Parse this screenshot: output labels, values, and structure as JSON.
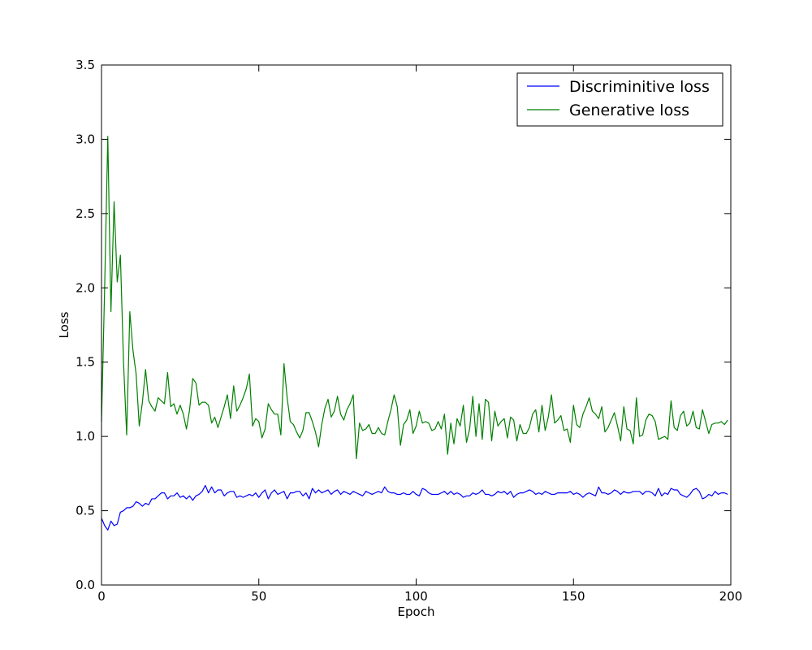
{
  "chart_data": {
    "type": "line",
    "title": "",
    "xlabel": "Epoch",
    "ylabel": "Loss",
    "xlim": [
      0,
      200
    ],
    "ylim": [
      0,
      3.5
    ],
    "xticks": [
      0,
      50,
      100,
      150,
      200
    ],
    "xtick_labels": [
      "0",
      "50",
      "100",
      "150",
      "200"
    ],
    "yticks": [
      0,
      0.5,
      1,
      1.5,
      2,
      2.5,
      3,
      3.5
    ],
    "ytick_labels": [
      "0.0",
      "0.5",
      "1.0",
      "1.5",
      "2.0",
      "2.5",
      "3.0",
      "3.5"
    ],
    "grid": false,
    "legend_position": "top-right",
    "series": [
      {
        "name": "Discriminitive loss",
        "color": "#0000ff",
        "x": [
          0,
          1,
          2,
          3,
          4,
          5,
          6,
          7,
          8,
          9,
          10,
          11,
          12,
          13,
          14,
          15,
          16,
          17,
          18,
          19,
          20,
          21,
          22,
          23,
          24,
          25,
          26,
          27,
          28,
          29,
          30,
          31,
          32,
          33,
          34,
          35,
          36,
          37,
          38,
          39,
          40,
          41,
          42,
          43,
          44,
          45,
          46,
          47,
          48,
          49,
          50,
          51,
          52,
          53,
          54,
          55,
          56,
          57,
          58,
          59,
          60,
          61,
          62,
          63,
          64,
          65,
          66,
          67,
          68,
          69,
          70,
          71,
          72,
          73,
          74,
          75,
          76,
          77,
          78,
          79,
          80,
          81,
          82,
          83,
          84,
          85,
          86,
          87,
          88,
          89,
          90,
          91,
          92,
          93,
          94,
          95,
          96,
          97,
          98,
          99,
          100,
          101,
          102,
          103,
          104,
          105,
          106,
          107,
          108,
          109,
          110,
          111,
          112,
          113,
          114,
          115,
          116,
          117,
          118,
          119,
          120,
          121,
          122,
          123,
          124,
          125,
          126,
          127,
          128,
          129,
          130,
          131,
          132,
          133,
          134,
          135,
          136,
          137,
          138,
          139,
          140,
          141,
          142,
          143,
          144,
          145,
          146,
          147,
          148,
          149,
          150,
          151,
          152,
          153,
          154,
          155,
          156,
          157,
          158,
          159,
          160,
          161,
          162,
          163,
          164,
          165,
          166,
          167,
          168,
          169,
          170,
          171,
          172,
          173,
          174,
          175,
          176,
          177,
          178,
          179,
          180,
          181,
          182,
          183,
          184,
          185,
          186,
          187,
          188,
          189,
          190,
          191,
          192,
          193,
          194,
          195,
          196,
          197,
          198,
          199
        ],
        "y": [
          0.45,
          0.4,
          0.37,
          0.43,
          0.4,
          0.41,
          0.49,
          0.5,
          0.52,
          0.52,
          0.53,
          0.56,
          0.55,
          0.53,
          0.55,
          0.54,
          0.58,
          0.58,
          0.6,
          0.62,
          0.62,
          0.58,
          0.6,
          0.6,
          0.62,
          0.59,
          0.6,
          0.58,
          0.6,
          0.57,
          0.6,
          0.61,
          0.63,
          0.67,
          0.62,
          0.66,
          0.62,
          0.64,
          0.64,
          0.6,
          0.62,
          0.63,
          0.63,
          0.59,
          0.6,
          0.59,
          0.6,
          0.61,
          0.6,
          0.62,
          0.59,
          0.62,
          0.64,
          0.58,
          0.62,
          0.64,
          0.61,
          0.62,
          0.63,
          0.58,
          0.62,
          0.62,
          0.63,
          0.63,
          0.6,
          0.62,
          0.58,
          0.65,
          0.62,
          0.64,
          0.62,
          0.63,
          0.64,
          0.61,
          0.63,
          0.64,
          0.61,
          0.63,
          0.62,
          0.61,
          0.63,
          0.62,
          0.61,
          0.6,
          0.63,
          0.62,
          0.61,
          0.62,
          0.63,
          0.62,
          0.66,
          0.63,
          0.62,
          0.62,
          0.61,
          0.61,
          0.62,
          0.61,
          0.61,
          0.63,
          0.61,
          0.6,
          0.65,
          0.64,
          0.62,
          0.61,
          0.61,
          0.61,
          0.62,
          0.63,
          0.61,
          0.63,
          0.61,
          0.62,
          0.61,
          0.59,
          0.6,
          0.6,
          0.62,
          0.61,
          0.62,
          0.64,
          0.61,
          0.61,
          0.6,
          0.61,
          0.63,
          0.62,
          0.63,
          0.61,
          0.63,
          0.59,
          0.61,
          0.62,
          0.62,
          0.63,
          0.64,
          0.63,
          0.61,
          0.62,
          0.61,
          0.63,
          0.62,
          0.61,
          0.61,
          0.62,
          0.62,
          0.62,
          0.62,
          0.63,
          0.61,
          0.62,
          0.61,
          0.59,
          0.61,
          0.62,
          0.61,
          0.6,
          0.66,
          0.62,
          0.62,
          0.61,
          0.62,
          0.64,
          0.63,
          0.61,
          0.63,
          0.62,
          0.62,
          0.63,
          0.63,
          0.63,
          0.61,
          0.63,
          0.63,
          0.62,
          0.6,
          0.65,
          0.6,
          0.62,
          0.61,
          0.65,
          0.64,
          0.64,
          0.61,
          0.6,
          0.59,
          0.61,
          0.64,
          0.65,
          0.63,
          0.58,
          0.59,
          0.61,
          0.6,
          0.63,
          0.61,
          0.62,
          0.62,
          0.61
        ]
      },
      {
        "name": "Generative loss",
        "color": "#008000",
        "x": [
          0,
          1,
          2,
          3,
          4,
          5,
          6,
          7,
          8,
          9,
          10,
          11,
          12,
          13,
          14,
          15,
          16,
          17,
          18,
          19,
          20,
          21,
          22,
          23,
          24,
          25,
          26,
          27,
          28,
          29,
          30,
          31,
          32,
          33,
          34,
          35,
          36,
          37,
          38,
          39,
          40,
          41,
          42,
          43,
          44,
          45,
          46,
          47,
          48,
          49,
          50,
          51,
          52,
          53,
          54,
          55,
          56,
          57,
          58,
          59,
          60,
          61,
          62,
          63,
          64,
          65,
          66,
          67,
          68,
          69,
          70,
          71,
          72,
          73,
          74,
          75,
          76,
          77,
          78,
          79,
          80,
          81,
          82,
          83,
          84,
          85,
          86,
          87,
          88,
          89,
          90,
          91,
          92,
          93,
          94,
          95,
          96,
          97,
          98,
          99,
          100,
          101,
          102,
          103,
          104,
          105,
          106,
          107,
          108,
          109,
          110,
          111,
          112,
          113,
          114,
          115,
          116,
          117,
          118,
          119,
          120,
          121,
          122,
          123,
          124,
          125,
          126,
          127,
          128,
          129,
          130,
          131,
          132,
          133,
          134,
          135,
          136,
          137,
          138,
          139,
          140,
          141,
          142,
          143,
          144,
          145,
          146,
          147,
          148,
          149,
          150,
          151,
          152,
          153,
          154,
          155,
          156,
          157,
          158,
          159,
          160,
          161,
          162,
          163,
          164,
          165,
          166,
          167,
          168,
          169,
          170,
          171,
          172,
          173,
          174,
          175,
          176,
          177,
          178,
          179,
          180,
          181,
          182,
          183,
          184,
          185,
          186,
          187,
          188,
          189,
          190,
          191,
          192,
          193,
          194,
          195,
          196,
          197,
          198,
          199
        ],
        "y": [
          1.1,
          2.0,
          3.02,
          1.84,
          2.58,
          2.04,
          2.22,
          1.5,
          1.01,
          1.84,
          1.58,
          1.42,
          1.07,
          1.23,
          1.45,
          1.24,
          1.2,
          1.17,
          1.26,
          1.24,
          1.22,
          1.43,
          1.2,
          1.22,
          1.15,
          1.21,
          1.15,
          1.05,
          1.18,
          1.39,
          1.36,
          1.21,
          1.23,
          1.23,
          1.21,
          1.09,
          1.13,
          1.06,
          1.13,
          1.2,
          1.28,
          1.12,
          1.34,
          1.17,
          1.21,
          1.26,
          1.32,
          1.42,
          1.07,
          1.12,
          1.1,
          0.99,
          1.05,
          1.22,
          1.18,
          1.15,
          1.15,
          1.01,
          1.49,
          1.26,
          1.1,
          1.08,
          1.03,
          0.99,
          1.04,
          1.16,
          1.16,
          1.1,
          1.03,
          0.93,
          1.08,
          1.19,
          1.25,
          1.13,
          1.17,
          1.27,
          1.15,
          1.11,
          1.18,
          1.22,
          1.28,
          0.85,
          1.09,
          1.04,
          1.05,
          1.08,
          1.02,
          1.02,
          1.06,
          1.02,
          1.01,
          1.1,
          1.18,
          1.28,
          1.2,
          0.94,
          1.08,
          1.11,
          1.18,
          1.02,
          1.07,
          1.17,
          1.09,
          1.1,
          1.09,
          1.04,
          1.05,
          1.1,
          1.05,
          1.15,
          0.88,
          1.09,
          0.95,
          1.12,
          1.07,
          1.21,
          0.96,
          1.05,
          1.27,
          1.0,
          1.22,
          0.98,
          1.25,
          1.23,
          0.97,
          1.17,
          1.07,
          1.1,
          1.12,
          0.99,
          1.13,
          1.11,
          0.97,
          1.08,
          1.02,
          1.02,
          1.06,
          1.15,
          1.18,
          1.03,
          1.21,
          1.04,
          1.13,
          1.28,
          1.09,
          1.11,
          1.14,
          1.04,
          1.05,
          0.96,
          1.21,
          1.08,
          1.06,
          1.15,
          1.2,
          1.26,
          1.17,
          1.15,
          1.12,
          1.2,
          1.03,
          1.06,
          1.11,
          1.16,
          1.07,
          0.97,
          1.2,
          1.05,
          1.04,
          0.95,
          1.26,
          1.0,
          1.01,
          1.11,
          1.15,
          1.14,
          1.1,
          0.98,
          0.99,
          1.0,
          0.98,
          1.24,
          1.06,
          1.04,
          1.14,
          1.17,
          1.07,
          1.09,
          1.17,
          1.06,
          1.05,
          1.18,
          1.1,
          1.02,
          1.08,
          1.09,
          1.09,
          1.1,
          1.08,
          1.11
        ]
      }
    ]
  }
}
